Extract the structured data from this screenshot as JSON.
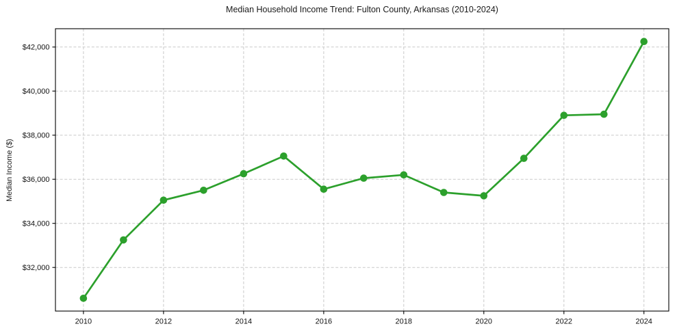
{
  "chart_data": {
    "type": "line",
    "title": "Median Household Income Trend: Fulton County, Arkansas (2010-2024)",
    "xlabel": "",
    "ylabel": "Median Income ($)",
    "x": [
      2010,
      2011,
      2012,
      2013,
      2014,
      2015,
      2016,
      2017,
      2018,
      2019,
      2020,
      2021,
      2022,
      2023,
      2024
    ],
    "values": [
      30600,
      33250,
      35050,
      35500,
      36250,
      37050,
      35550,
      36050,
      36200,
      35400,
      35250,
      36950,
      38900,
      38950,
      42250
    ],
    "x_ticks": [
      2010,
      2012,
      2014,
      2016,
      2018,
      2020,
      2022,
      2024
    ],
    "y_ticks": [
      32000,
      34000,
      36000,
      38000,
      40000,
      42000
    ],
    "y_tick_labels": [
      "$32,000",
      "$34,000",
      "$36,000",
      "$38,000",
      "$40,000",
      "$42,000"
    ],
    "xlim": [
      2009.3,
      2024.62
    ],
    "ylim": [
      30020,
      42830
    ],
    "grid": true,
    "grid_style": "dashed",
    "legend_position": "none",
    "line_color": "#2ca02c",
    "marker": "circle",
    "marker_color": "#2ca02c",
    "background_color": "#ffffff"
  }
}
